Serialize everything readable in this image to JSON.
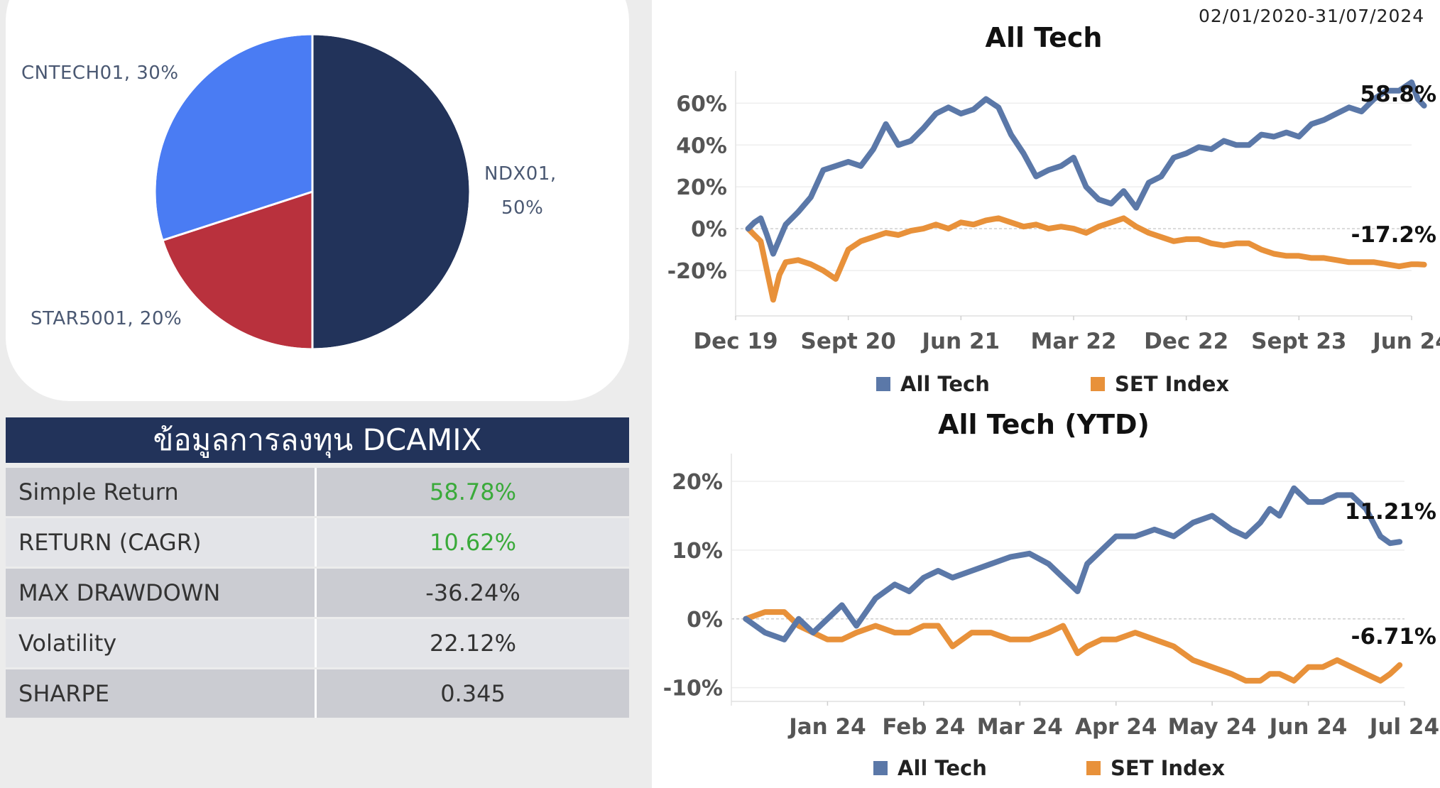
{
  "date_range": "02/01/2020-31/07/2024",
  "allocation": {
    "slices": [
      {
        "name": "NDX01",
        "label_line1": "NDX01,",
        "label_line2": "50%",
        "value": 50,
        "color": "#22335a"
      },
      {
        "name": "STAR5001",
        "label_line1": "STAR5001, 20%",
        "value": 20,
        "color": "#b9313d"
      },
      {
        "name": "CNTECH01",
        "label_line1": "CNTECH01, 30%",
        "value": 30,
        "color": "#4a7cf3"
      }
    ]
  },
  "stats": {
    "title": "ข้อมูลการลงทุน DCAMIX",
    "rows": [
      {
        "label": "Simple Return",
        "value": "58.78%",
        "positive": true
      },
      {
        "label": "RETURN (CAGR)",
        "value": "10.62%",
        "positive": true
      },
      {
        "label": "MAX DRAWDOWN",
        "value": "-36.24%",
        "positive": false
      },
      {
        "label": "Volatility",
        "value": "22.12%",
        "positive": false
      },
      {
        "label": "SHARPE",
        "value": "0.345",
        "positive": false
      }
    ]
  },
  "colors": {
    "all_tech": "#5b78a8",
    "set_index": "#e8913a"
  },
  "chart_data": [
    {
      "type": "line",
      "title": "All Tech",
      "ylim": [
        -40,
        72
      ],
      "yticks": [
        60,
        40,
        20,
        0,
        -20
      ],
      "ytick_labels": [
        "60%",
        "40%",
        "20%",
        "0%",
        "-20%"
      ],
      "xlim": [
        0,
        54
      ],
      "xticks": [
        0,
        9,
        18,
        27,
        36,
        45,
        54
      ],
      "xtick_labels": [
        "Dec 19",
        "Sept 20",
        "Jun 21",
        "Mar 22",
        "Dec 22",
        "Sept 23",
        "Jun 24"
      ],
      "x": [
        1,
        1.5,
        2,
        2.5,
        3,
        3.5,
        4,
        5,
        6,
        7,
        8,
        9,
        10,
        11,
        12,
        13,
        14,
        15,
        16,
        17,
        18,
        19,
        20,
        21,
        22,
        23,
        24,
        25,
        26,
        27,
        28,
        29,
        30,
        31,
        32,
        33,
        34,
        35,
        36,
        37,
        38,
        39,
        40,
        41,
        42,
        43,
        44,
        45,
        46,
        47,
        48,
        49,
        50,
        51,
        52,
        53,
        54,
        54.5,
        55
      ],
      "series": [
        {
          "name": "All Tech",
          "end_label": "58.8%",
          "values": [
            0,
            3,
            5,
            -3,
            -12,
            -5,
            2,
            8,
            15,
            28,
            30,
            32,
            30,
            38,
            50,
            40,
            42,
            48,
            55,
            58,
            55,
            57,
            62,
            58,
            45,
            36,
            25,
            28,
            30,
            34,
            20,
            14,
            12,
            18,
            10,
            22,
            25,
            34,
            36,
            39,
            38,
            42,
            40,
            40,
            45,
            44,
            46,
            44,
            50,
            52,
            55,
            58,
            56,
            62,
            66,
            66,
            70,
            62,
            58.8
          ]
        },
        {
          "name": "SET Index",
          "end_label": "-17.2%",
          "values": [
            0,
            -3,
            -6,
            -20,
            -34,
            -22,
            -16,
            -15,
            -17,
            -20,
            -24,
            -10,
            -6,
            -4,
            -2,
            -3,
            -1,
            0,
            2,
            0,
            3,
            2,
            4,
            5,
            3,
            1,
            2,
            0,
            1,
            0,
            -2,
            1,
            3,
            5,
            1,
            -2,
            -4,
            -6,
            -5,
            -5,
            -7,
            -8,
            -7,
            -7,
            -10,
            -12,
            -13,
            -13,
            -14,
            -14,
            -15,
            -16,
            -16,
            -16,
            -17,
            -18,
            -17,
            -17,
            -17.2
          ]
        }
      ],
      "legend": [
        "All Tech",
        "SET Index"
      ]
    },
    {
      "type": "line",
      "title": "All Tech (YTD)",
      "ylim": [
        -12,
        23
      ],
      "yticks": [
        20,
        10,
        0,
        -10
      ],
      "ytick_labels": [
        "20%",
        "10%",
        "0%",
        "-10%"
      ],
      "xlim": [
        0,
        7
      ],
      "xticks": [
        1,
        2,
        3,
        4,
        5,
        6,
        7
      ],
      "xtick_labels": [
        "Jan 24",
        "Feb 24",
        "Mar 24",
        "Apr 24",
        "May 24",
        "Jun 24",
        "Jul 24"
      ],
      "x": [
        0.15,
        0.35,
        0.55,
        0.7,
        0.85,
        1,
        1.15,
        1.3,
        1.5,
        1.7,
        1.85,
        2,
        2.15,
        2.3,
        2.5,
        2.7,
        2.9,
        3.1,
        3.3,
        3.45,
        3.6,
        3.7,
        3.85,
        4,
        4.2,
        4.4,
        4.6,
        4.8,
        5,
        5.2,
        5.35,
        5.5,
        5.6,
        5.7,
        5.85,
        6,
        6.15,
        6.3,
        6.45,
        6.6,
        6.75,
        6.85,
        6.95
      ],
      "series": [
        {
          "name": "All Tech",
          "end_label": "11.21%",
          "values": [
            0,
            -2,
            -3,
            0,
            -2,
            0,
            2,
            -1,
            3,
            5,
            4,
            6,
            7,
            6,
            7,
            8,
            9,
            9.5,
            8,
            6,
            4,
            8,
            10,
            12,
            12,
            13,
            12,
            14,
            15,
            13,
            12,
            14,
            16,
            15,
            19,
            17,
            17,
            18,
            18,
            16,
            12,
            11,
            11.21
          ]
        },
        {
          "name": "SET Index",
          "end_label": "-6.71%",
          "values": [
            0,
            1,
            1,
            -1,
            -2,
            -3,
            -3,
            -2,
            -1,
            -2,
            -2,
            -1,
            -1,
            -4,
            -2,
            -2,
            -3,
            -3,
            -2,
            -1,
            -5,
            -4,
            -3,
            -3,
            -2,
            -3,
            -4,
            -6,
            -7,
            -8,
            -9,
            -9,
            -8,
            -8,
            -9,
            -7,
            -7,
            -6,
            -7,
            -8,
            -9,
            -8,
            -6.71
          ]
        }
      ],
      "legend": [
        "All Tech",
        "SET Index"
      ]
    }
  ]
}
